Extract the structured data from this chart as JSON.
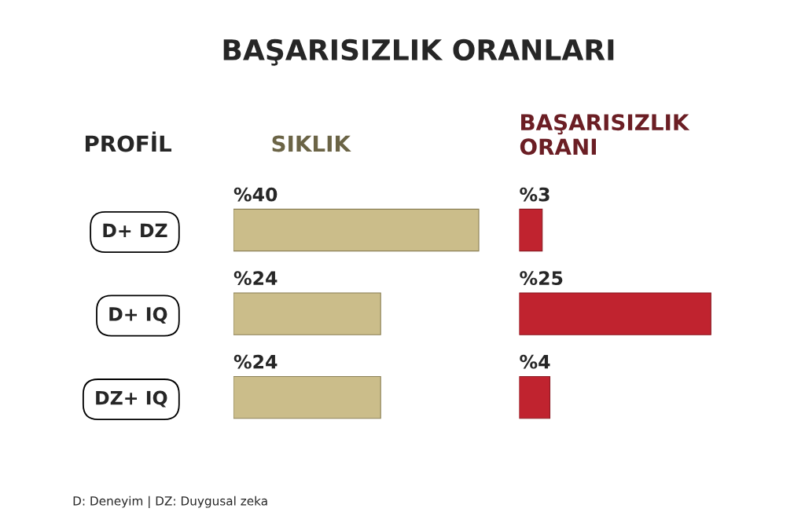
{
  "chart_data": [
    {
      "type": "bar",
      "orientation": "horizontal",
      "title": "BAŞARISIZLIK ORANLARI",
      "subtitle": "SIKLIK",
      "ylabel": "PROFİL",
      "categories": [
        "D+ DZ",
        "D+ IQ",
        "DZ+ IQ"
      ],
      "series": [
        {
          "color": "#cbbd8a",
          "values": [
            40,
            24,
            24
          ],
          "value_labels": [
            "%40",
            "%24",
            "%24"
          ]
        }
      ],
      "grid": false,
      "legend": false,
      "tick_labels": "y",
      "annotations": [
        "D: Deneyim | DZ: Duygusal zeka"
      ]
    },
    {
      "type": "bar",
      "orientation": "horizontal",
      "subtitle": "BAŞARISIZLIK\nORANI",
      "categories": [
        null,
        null,
        null
      ],
      "series": [
        {
          "color": "#c0232f",
          "values": [
            3,
            25,
            4
          ],
          "value_labels": [
            "%3",
            "%25",
            "%4"
          ]
        }
      ],
      "grid": false,
      "legend": false,
      "tick_labels": false
    }
  ]
}
